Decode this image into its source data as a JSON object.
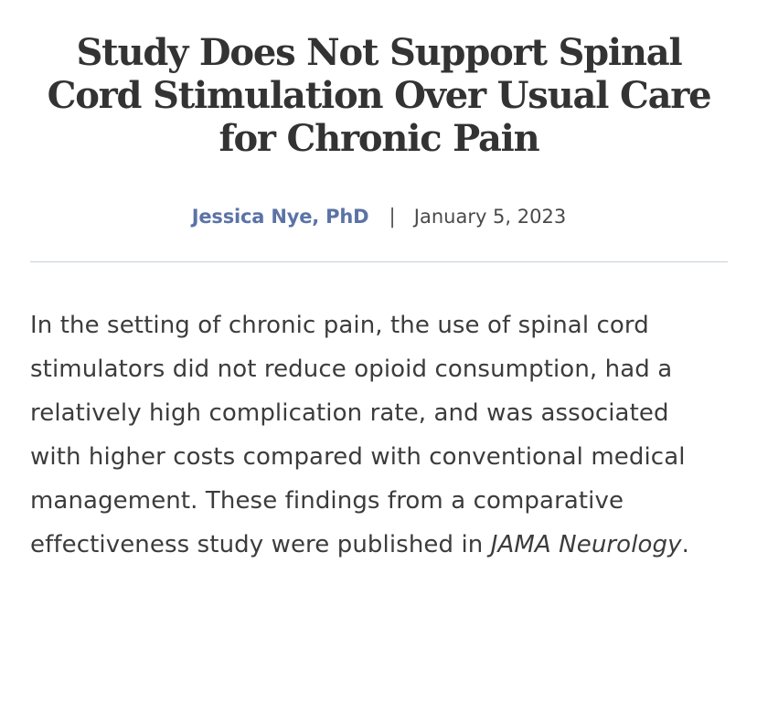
{
  "article": {
    "headline": "Study Does Not Support Spinal Cord Stimulation Over Usual Care for Chronic Pain",
    "author": "Jessica Nye, PhD",
    "separator": "|",
    "date": "January 5, 2023",
    "body_text": "In the setting of chronic pain, the use of spinal cord stimulators did not reduce opioid consumption, had a relatively high complication rate, and was associated with higher costs compared with conventional medical management. These findings from a comparative effectiveness study were published in ",
    "journal_name": "JAMA Neurology",
    "body_end": "."
  },
  "colors": {
    "author_link": "#5b73a6",
    "headline": "#333333",
    "body": "#3c3c3c",
    "rule": "#c7d1d7"
  }
}
